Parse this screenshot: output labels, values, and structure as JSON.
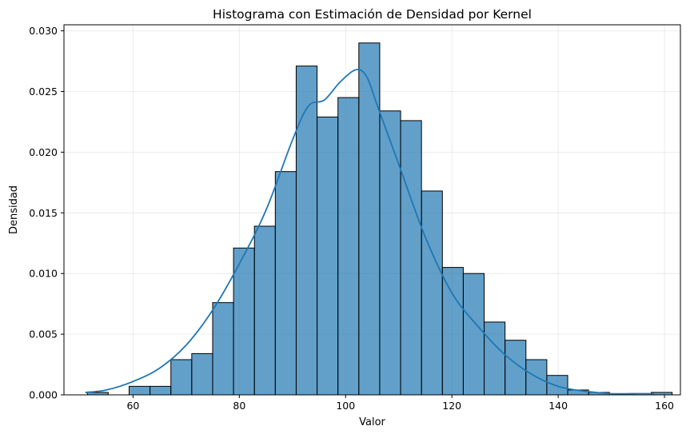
{
  "chart_data": {
    "type": "bar",
    "title": "Histograma con Estimación de Densidad por Kernel",
    "xlabel": "Valor",
    "ylabel": "Densidad",
    "xlim": [
      47,
      163
    ],
    "ylim": [
      0,
      0.0305
    ],
    "x_ticks": [
      60,
      80,
      100,
      120,
      140,
      160
    ],
    "y_ticks": [
      0.0,
      0.005,
      0.01,
      0.015,
      0.02,
      0.025,
      0.03
    ],
    "y_tick_labels": [
      "0.000",
      "0.005",
      "0.010",
      "0.015",
      "0.020",
      "0.025",
      "0.030"
    ],
    "grid": true,
    "bin_start": 51.4,
    "bin_width": 3.93,
    "densities": [
      0.0002,
      0.0,
      0.0007,
      0.0007,
      0.0029,
      0.0034,
      0.0076,
      0.0121,
      0.0139,
      0.0184,
      0.0271,
      0.0229,
      0.0245,
      0.029,
      0.0234,
      0.0226,
      0.0168,
      0.0105,
      0.01,
      0.006,
      0.0045,
      0.0029,
      0.0016,
      0.0004,
      0.0002,
      0.0,
      0.0,
      0.0002
    ],
    "kde": {
      "x": [
        51,
        55,
        60,
        65,
        70,
        75,
        80,
        85,
        90,
        93,
        96,
        99,
        102,
        104,
        106,
        110,
        115,
        120,
        125,
        130,
        135,
        140,
        145,
        150,
        155,
        158
      ],
      "y": [
        0.0002,
        0.0004,
        0.0011,
        0.0022,
        0.0041,
        0.007,
        0.0108,
        0.0152,
        0.021,
        0.0238,
        0.0243,
        0.0258,
        0.0268,
        0.0262,
        0.0238,
        0.019,
        0.013,
        0.0084,
        0.0056,
        0.0033,
        0.0017,
        0.0007,
        0.0003,
        0.0001,
        0.0001,
        0.0001
      ]
    },
    "colors": {
      "bar": "#1f77b4",
      "kde": "#1f77b4"
    }
  }
}
